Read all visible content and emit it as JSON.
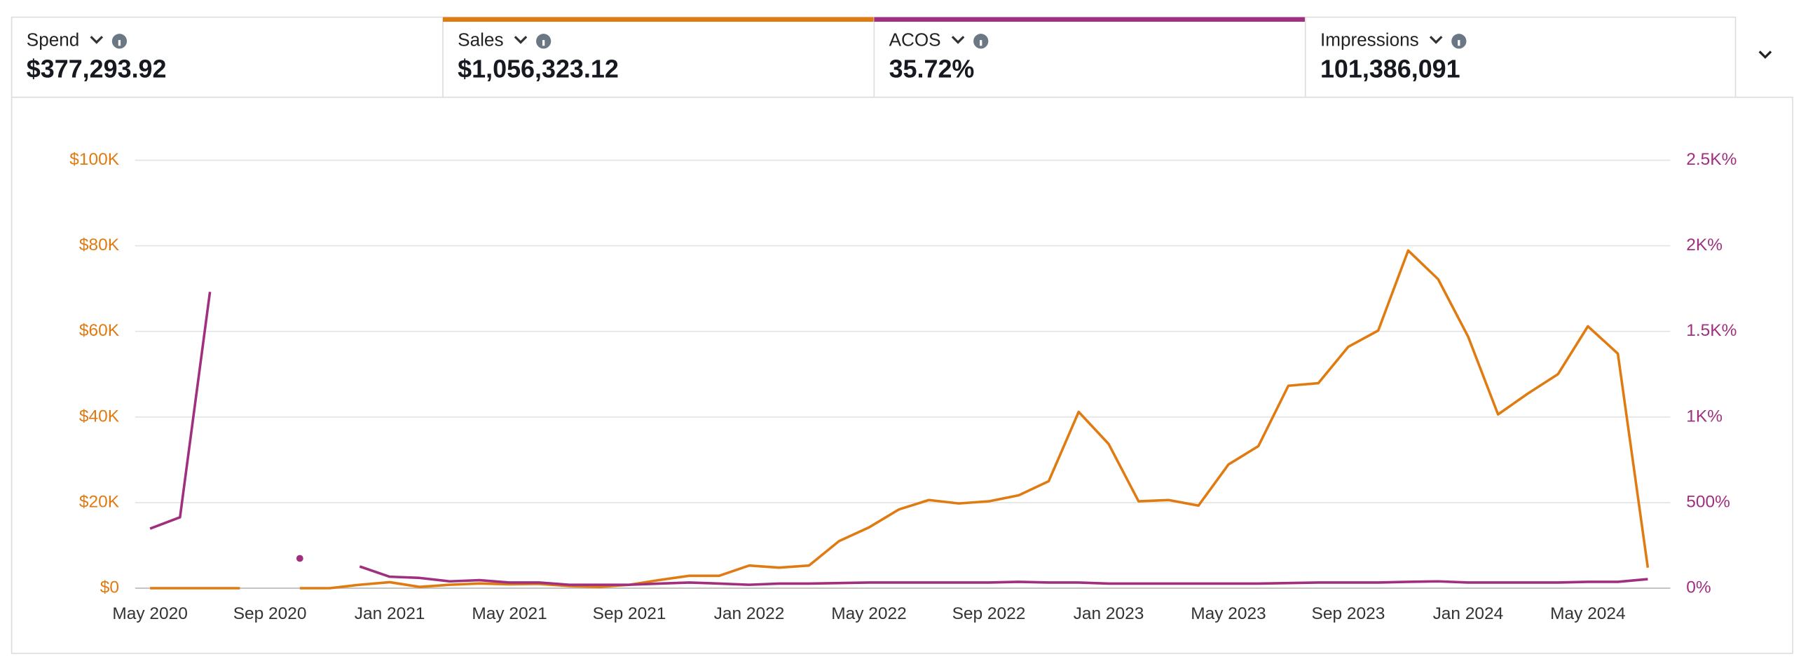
{
  "metrics": [
    {
      "label": "Spend",
      "value": "$377,293.92",
      "color": null
    },
    {
      "label": "Sales",
      "value": "$1,056,323.12",
      "color": "#e07b12"
    },
    {
      "label": "ACOS",
      "value": "35.72%",
      "color": "#a0307f"
    },
    {
      "label": "Impressions",
      "value": "101,386,091",
      "color": null
    }
  ],
  "chart_data": {
    "type": "line",
    "x": [
      "2020-05",
      "2020-06",
      "2020-07",
      "2020-08",
      "2020-09",
      "2020-10",
      "2020-11",
      "2020-12",
      "2021-01",
      "2021-02",
      "2021-03",
      "2021-04",
      "2021-05",
      "2021-06",
      "2021-07",
      "2021-08",
      "2021-09",
      "2021-10",
      "2021-11",
      "2021-12",
      "2022-01",
      "2022-02",
      "2022-03",
      "2022-04",
      "2022-05",
      "2022-06",
      "2022-07",
      "2022-08",
      "2022-09",
      "2022-10",
      "2022-11",
      "2022-12",
      "2023-01",
      "2023-02",
      "2023-03",
      "2023-04",
      "2023-05",
      "2023-06",
      "2023-07",
      "2023-08",
      "2023-09",
      "2023-10",
      "2023-11",
      "2023-12",
      "2024-01",
      "2024-02",
      "2024-03",
      "2024-04",
      "2024-05",
      "2024-06",
      "2024-07"
    ],
    "xticks": [
      {
        "value": "2020-05",
        "label": "May 2020"
      },
      {
        "value": "2020-09",
        "label": "Sep 2020"
      },
      {
        "value": "2021-01",
        "label": "Jan 2021"
      },
      {
        "value": "2021-05",
        "label": "May 2021"
      },
      {
        "value": "2021-09",
        "label": "Sep 2021"
      },
      {
        "value": "2022-01",
        "label": "Jan 2022"
      },
      {
        "value": "2022-05",
        "label": "May 2022"
      },
      {
        "value": "2022-09",
        "label": "Sep 2022"
      },
      {
        "value": "2023-01",
        "label": "Jan 2023"
      },
      {
        "value": "2023-05",
        "label": "May 2023"
      },
      {
        "value": "2023-09",
        "label": "Sep 2023"
      },
      {
        "value": "2024-01",
        "label": "Jan 2024"
      },
      {
        "value": "2024-05",
        "label": "May 2024"
      }
    ],
    "series": [
      {
        "name": "Sales",
        "color": "#e07b12",
        "values": [
          0,
          0,
          0,
          0,
          null,
          0,
          0,
          800,
          1400,
          300,
          800,
          1100,
          900,
          1000,
          500,
          300,
          800,
          1900,
          2900,
          2900,
          5300,
          4800,
          5300,
          11000,
          14200,
          18400,
          20600,
          19800,
          20300,
          21700,
          25000,
          41200,
          33700,
          20300,
          20600,
          19300,
          28900,
          33200,
          47300,
          47900,
          56400,
          60200,
          78900,
          72200,
          58800,
          40600,
          45500,
          50000,
          61200,
          54800,
          4800
        ]
      },
      {
        "name": "ACOS",
        "color": "#a0307f",
        "axis": "y2",
        "values": [
          348,
          414,
          1731,
          null,
          null,
          174,
          null,
          127,
          67,
          60,
          40,
          47,
          33,
          33,
          20,
          20,
          20,
          27,
          33,
          27,
          20,
          27,
          27,
          30,
          33,
          33,
          33,
          33,
          33,
          37,
          33,
          33,
          27,
          27,
          27,
          27,
          27,
          27,
          30,
          33,
          33,
          33,
          37,
          40,
          33,
          33,
          33,
          33,
          37,
          37,
          53
        ]
      }
    ],
    "ylim": [
      0,
      100000
    ],
    "yticks": [
      {
        "value": 0,
        "label": "$0"
      },
      {
        "value": 20000,
        "label": "$20K"
      },
      {
        "value": 40000,
        "label": "$40K"
      },
      {
        "value": 60000,
        "label": "$60K"
      },
      {
        "value": 80000,
        "label": "$80K"
      },
      {
        "value": 100000,
        "label": "$100K"
      }
    ],
    "y2lim": [
      0,
      2500
    ],
    "y2ticks": [
      {
        "value": 0,
        "label": "0%"
      },
      {
        "value": 500,
        "label": "500%"
      },
      {
        "value": 1000,
        "label": "1K%"
      },
      {
        "value": 1500,
        "label": "1.5K%"
      },
      {
        "value": 2000,
        "label": "2K%"
      },
      {
        "value": 2500,
        "label": "2.5K%"
      }
    ],
    "grid": true
  }
}
